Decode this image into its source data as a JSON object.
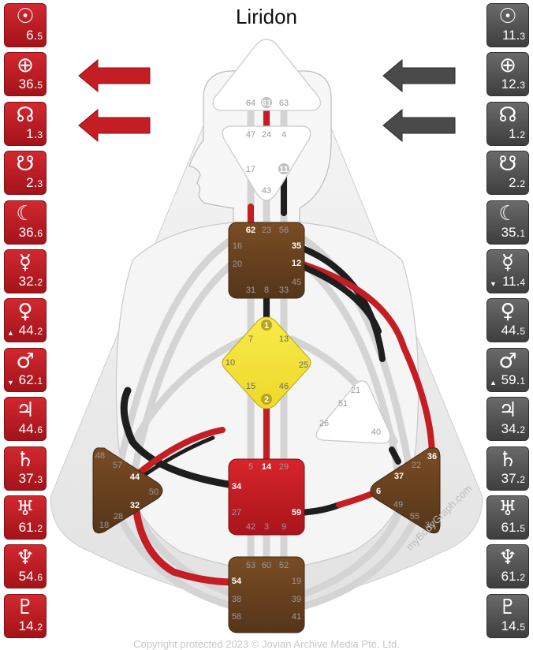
{
  "title": "Liridon",
  "copyright": "Copyright protected 2023 © Jovian Archive Media Pte. Ltd.",
  "watermark": "myBodyGraph.com",
  "colors": {
    "design_red": "#c8161e",
    "personality_black": "#1e1e1e",
    "defined_center_brown": "#6b4420",
    "sacral_red": "#c41d24",
    "g_center_yellow": "#f3e23b",
    "open_center": "#ffffff"
  },
  "design_planets": [
    {
      "icon": "sun-icon",
      "symbol": "☉",
      "gate": "6",
      "line": "5",
      "arrow": ""
    },
    {
      "icon": "earth-icon",
      "symbol": "⊕",
      "gate": "36",
      "line": "5",
      "arrow": ""
    },
    {
      "icon": "north-node-icon",
      "symbol": "☊",
      "gate": "1",
      "line": "3",
      "arrow": ""
    },
    {
      "icon": "south-node-icon",
      "symbol": "☋",
      "gate": "2",
      "line": "3",
      "arrow": ""
    },
    {
      "icon": "moon-icon",
      "symbol": "☾",
      "gate": "36",
      "line": "6",
      "arrow": ""
    },
    {
      "icon": "mercury-icon",
      "symbol": "☿",
      "gate": "32",
      "line": "2",
      "arrow": ""
    },
    {
      "icon": "venus-icon",
      "symbol": "♀",
      "gate": "44",
      "line": "2",
      "arrow": "▲"
    },
    {
      "icon": "mars-icon",
      "symbol": "♂",
      "gate": "62",
      "line": "1",
      "arrow": "▼"
    },
    {
      "icon": "jupiter-icon",
      "symbol": "♃",
      "gate": "44",
      "line": "6",
      "arrow": ""
    },
    {
      "icon": "saturn-icon",
      "symbol": "♄",
      "gate": "37",
      "line": "3",
      "arrow": ""
    },
    {
      "icon": "uranus-icon",
      "symbol": "♅",
      "gate": "61",
      "line": "2",
      "arrow": ""
    },
    {
      "icon": "neptune-icon",
      "symbol": "♆",
      "gate": "54",
      "line": "6",
      "arrow": ""
    },
    {
      "icon": "pluto-icon",
      "symbol": "♇",
      "gate": "14",
      "line": "2",
      "arrow": ""
    }
  ],
  "personality_planets": [
    {
      "icon": "sun-icon",
      "symbol": "☉",
      "gate": "11",
      "line": "3",
      "arrow": ""
    },
    {
      "icon": "earth-icon",
      "symbol": "⊕",
      "gate": "12",
      "line": "3",
      "arrow": ""
    },
    {
      "icon": "north-node-icon",
      "symbol": "☊",
      "gate": "1",
      "line": "2",
      "arrow": ""
    },
    {
      "icon": "south-node-icon",
      "symbol": "☋",
      "gate": "2",
      "line": "2",
      "arrow": ""
    },
    {
      "icon": "moon-icon",
      "symbol": "☾",
      "gate": "35",
      "line": "1",
      "arrow": ""
    },
    {
      "icon": "mercury-icon",
      "symbol": "☿",
      "gate": "11",
      "line": "4",
      "arrow": "▼"
    },
    {
      "icon": "venus-icon",
      "symbol": "♀",
      "gate": "44",
      "line": "5",
      "arrow": ""
    },
    {
      "icon": "mars-icon",
      "symbol": "♂",
      "gate": "59",
      "line": "1",
      "arrow": "▲"
    },
    {
      "icon": "jupiter-icon",
      "symbol": "♃",
      "gate": "34",
      "line": "2",
      "arrow": ""
    },
    {
      "icon": "saturn-icon",
      "symbol": "♄",
      "gate": "37",
      "line": "2",
      "arrow": ""
    },
    {
      "icon": "uranus-icon",
      "symbol": "♅",
      "gate": "61",
      "line": "5",
      "arrow": ""
    },
    {
      "icon": "neptune-icon",
      "symbol": "♆",
      "gate": "61",
      "line": "2",
      "arrow": ""
    },
    {
      "icon": "pluto-icon",
      "symbol": "♇",
      "gate": "14",
      "line": "5",
      "arrow": ""
    }
  ],
  "arrows": {
    "design": [
      "left",
      "left"
    ],
    "personality": [
      "left",
      "left"
    ]
  },
  "centers": {
    "head": {
      "gates": [
        "64",
        "61",
        "63"
      ],
      "defined": false
    },
    "ajna": {
      "gates": [
        "47",
        "24",
        "4",
        "17",
        "11",
        "43"
      ],
      "defined": false
    },
    "throat": {
      "gates": [
        "62",
        "23",
        "56",
        "16",
        "35",
        "20",
        "12",
        "45",
        "31",
        "8",
        "33"
      ],
      "defined": true
    },
    "g": {
      "gates": [
        "1",
        "7",
        "13",
        "10",
        "25",
        "15",
        "46",
        "2"
      ],
      "defined": true
    },
    "heart": {
      "gates": [
        "21",
        "51",
        "26",
        "40"
      ],
      "defined": false
    },
    "sacral": {
      "gates": [
        "5",
        "14",
        "29",
        "34",
        "27",
        "42",
        "3",
        "9",
        "59"
      ],
      "defined": true
    },
    "spleen": {
      "gates": [
        "48",
        "57",
        "44",
        "50",
        "32",
        "28",
        "18"
      ],
      "defined": true
    },
    "solar_plexus": {
      "gates": [
        "36",
        "22",
        "37",
        "6",
        "49",
        "55",
        "30"
      ],
      "defined": true
    },
    "root": {
      "gates": [
        "53",
        "60",
        "52",
        "54",
        "19",
        "38",
        "39",
        "58",
        "41"
      ],
      "defined": true
    }
  }
}
